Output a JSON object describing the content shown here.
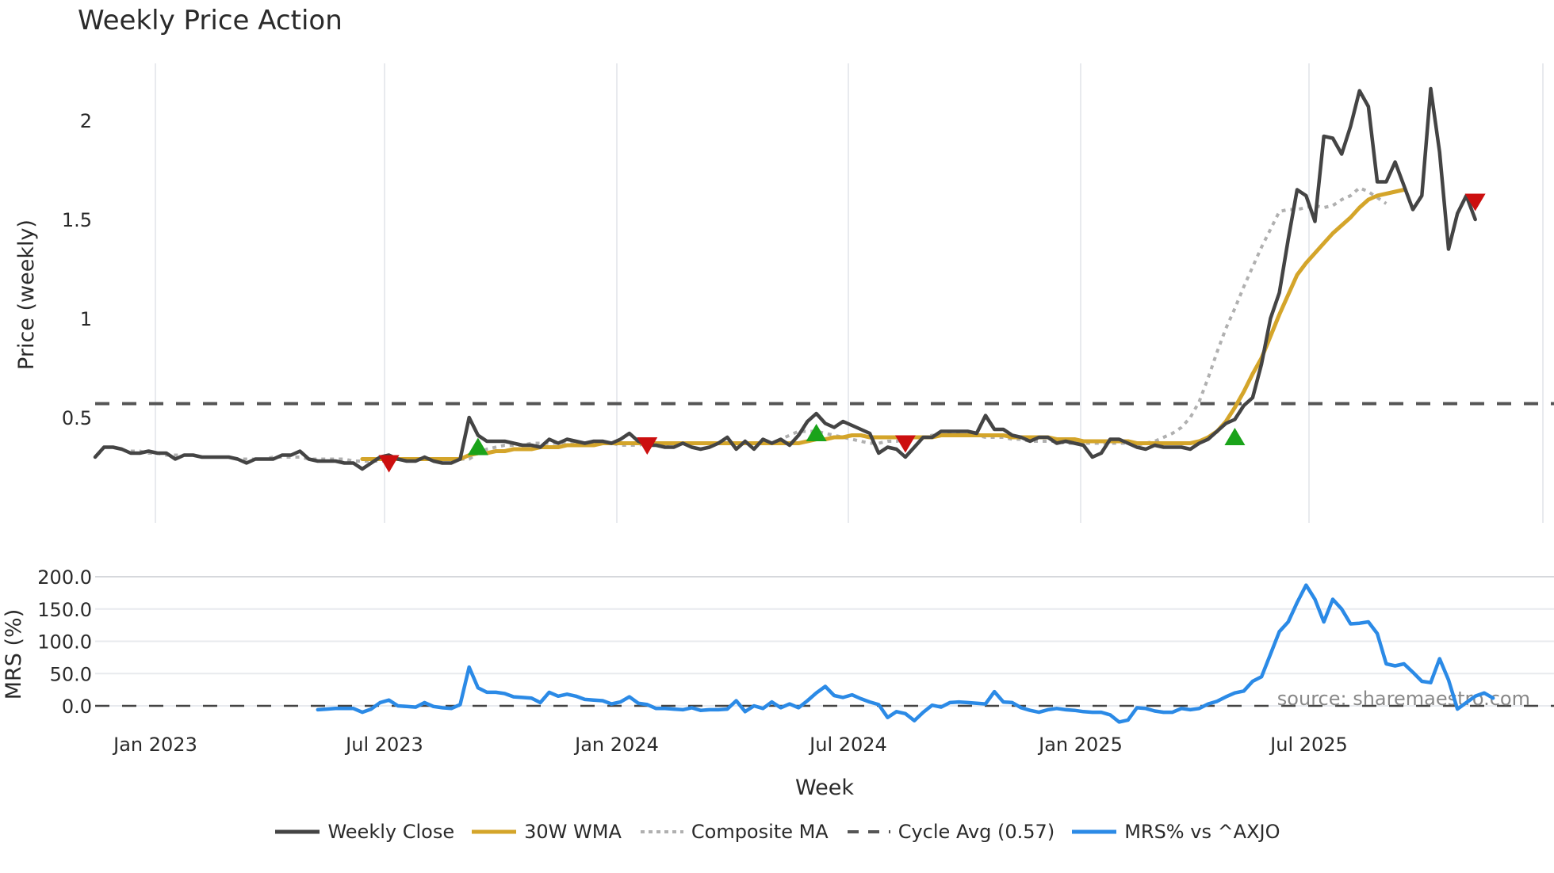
{
  "header": {
    "title": "Weekly Price Action"
  },
  "source_note": "source: sharemaestro.com",
  "colors": {
    "close": "#444444",
    "wma": "#d4a52a",
    "composite": "#b0b0b0",
    "cycle": "#555555",
    "mrs": "#2b8ae6",
    "buy": "#1aa31a",
    "sell": "#cc0f0f",
    "grid": "#e8eaee"
  },
  "legend": [
    {
      "key": "close",
      "label": "Weekly Close",
      "style": "solid"
    },
    {
      "key": "wma",
      "label": "30W WMA",
      "style": "solid"
    },
    {
      "key": "composite",
      "label": "Composite MA",
      "style": "dotted"
    },
    {
      "key": "cycle",
      "label": "Cycle Avg (0.57)",
      "style": "dashed"
    },
    {
      "key": "mrs",
      "label": "MRS% vs ^AXJO",
      "style": "solid"
    }
  ],
  "chart_data": [
    {
      "type": "line",
      "title": "Weekly Price Action",
      "xlabel": "Week",
      "ylabel": "Price (weekly)",
      "yticks": [
        0.5,
        1,
        1.5,
        2
      ],
      "ytick_labels": [
        "0.5",
        "1",
        "1.5",
        "2"
      ],
      "ylim": [
        0.19,
        2.27
      ],
      "xticks": [
        "Jan 2023",
        "Jul 2023",
        "Jan 2024",
        "Jul 2024",
        "Jan 2025",
        "Jul 2025"
      ],
      "grid": true,
      "legend_position": "bottom",
      "x_start_week": -7,
      "x_week_count": 156,
      "cycle_avg": 0.57,
      "series": [
        {
          "name": "Weekly Close",
          "start": 0,
          "values": [
            0.3,
            0.35,
            0.35,
            0.34,
            0.32,
            0.32,
            0.33,
            0.32,
            0.32,
            0.29,
            0.31,
            0.31,
            0.3,
            0.3,
            0.3,
            0.3,
            0.29,
            0.27,
            0.29,
            0.29,
            0.29,
            0.31,
            0.31,
            0.33,
            0.29,
            0.28,
            0.28,
            0.28,
            0.27,
            0.27,
            0.24,
            0.27,
            0.3,
            0.31,
            0.29,
            0.28,
            0.28,
            0.3,
            0.28,
            0.27,
            0.27,
            0.29,
            0.5,
            0.41,
            0.38,
            0.38,
            0.38,
            0.37,
            0.36,
            0.36,
            0.35,
            0.39,
            0.37,
            0.39,
            0.38,
            0.37,
            0.38,
            0.38,
            0.37,
            0.39,
            0.42,
            0.38,
            0.36,
            0.36,
            0.35,
            0.35,
            0.37,
            0.35,
            0.34,
            0.35,
            0.37,
            0.4,
            0.34,
            0.38,
            0.34,
            0.39,
            0.37,
            0.39,
            0.36,
            0.41,
            0.48,
            0.52,
            0.47,
            0.45,
            0.48,
            0.46,
            0.44,
            0.42,
            0.32,
            0.35,
            0.34,
            0.3,
            0.35,
            0.4,
            0.4,
            0.43,
            0.43,
            0.43,
            0.43,
            0.42,
            0.51,
            0.44,
            0.44,
            0.41,
            0.4,
            0.38,
            0.4,
            0.4,
            0.37,
            0.38,
            0.37,
            0.36,
            0.3,
            0.32,
            0.39,
            0.39,
            0.37,
            0.35,
            0.34,
            0.36,
            0.35,
            0.35,
            0.35,
            0.34,
            0.37,
            0.39,
            0.43,
            0.47,
            0.49,
            0.56,
            0.6,
            0.77,
            1.0,
            1.13,
            1.4,
            1.65,
            1.62,
            1.49,
            1.92,
            1.91,
            1.83,
            1.97,
            2.15,
            2.07,
            1.69,
            1.69,
            1.79,
            1.67,
            1.55,
            1.62,
            2.16,
            1.84,
            1.35,
            1.53,
            1.62,
            1.5
          ]
        },
        {
          "name": "30W WMA",
          "start": 30,
          "values": [
            0.29,
            0.29,
            0.29,
            0.29,
            0.29,
            0.29,
            0.29,
            0.29,
            0.29,
            0.29,
            0.29,
            0.29,
            0.31,
            0.32,
            0.32,
            0.33,
            0.33,
            0.34,
            0.34,
            0.34,
            0.35,
            0.35,
            0.35,
            0.36,
            0.36,
            0.36,
            0.36,
            0.37,
            0.37,
            0.37,
            0.37,
            0.37,
            0.37,
            0.37,
            0.37,
            0.37,
            0.37,
            0.37,
            0.37,
            0.37,
            0.37,
            0.37,
            0.37,
            0.37,
            0.37,
            0.37,
            0.37,
            0.37,
            0.37,
            0.37,
            0.38,
            0.39,
            0.39,
            0.4,
            0.4,
            0.41,
            0.41,
            0.4,
            0.4,
            0.4,
            0.4,
            0.4,
            0.4,
            0.4,
            0.4,
            0.41,
            0.41,
            0.41,
            0.41,
            0.41,
            0.41,
            0.41,
            0.41,
            0.4,
            0.4,
            0.4,
            0.4,
            0.4,
            0.39,
            0.39,
            0.39,
            0.38,
            0.38,
            0.38,
            0.38,
            0.38,
            0.38,
            0.37,
            0.37,
            0.37,
            0.37,
            0.37,
            0.37,
            0.37,
            0.38,
            0.4,
            0.43,
            0.48,
            0.55,
            0.63,
            0.72,
            0.8,
            0.91,
            1.02,
            1.12,
            1.22,
            1.28,
            1.33,
            1.38,
            1.43,
            1.47,
            1.51,
            1.56,
            1.6,
            1.62,
            1.63,
            1.64,
            1.65
          ]
        },
        {
          "name": "Composite MA",
          "start": 4,
          "values": [
            0.33,
            0.33,
            0.32,
            0.32,
            0.31,
            0.31,
            0.31,
            0.31,
            0.3,
            0.3,
            0.3,
            0.3,
            0.29,
            0.29,
            0.29,
            0.29,
            0.3,
            0.3,
            0.3,
            0.3,
            0.29,
            0.29,
            0.29,
            0.29,
            0.29,
            0.28,
            0.28,
            0.28,
            0.28,
            0.28,
            0.29,
            0.29,
            0.29,
            0.29,
            0.29,
            0.29,
            0.29,
            0.29,
            0.29,
            0.32,
            0.34,
            0.35,
            0.36,
            0.36,
            0.36,
            0.37,
            0.37,
            0.37,
            0.37,
            0.37,
            0.38,
            0.37,
            0.37,
            0.37,
            0.37,
            0.36,
            0.36,
            0.36,
            0.37,
            0.36,
            0.37,
            0.36,
            0.37,
            0.37,
            0.37,
            0.37,
            0.37,
            0.37,
            0.37,
            0.37,
            0.37,
            0.37,
            0.37,
            0.39,
            0.41,
            0.43,
            0.43,
            0.43,
            0.42,
            0.41,
            0.4,
            0.39,
            0.38,
            0.37,
            0.37,
            0.38,
            0.38,
            0.39,
            0.4,
            0.4,
            0.41,
            0.41,
            0.42,
            0.42,
            0.41,
            0.41,
            0.4,
            0.4,
            0.4,
            0.39,
            0.39,
            0.38,
            0.38,
            0.38,
            0.38,
            0.37,
            0.37,
            0.37,
            0.37,
            0.37,
            0.37,
            0.37,
            0.37,
            0.36,
            0.37,
            0.38,
            0.4,
            0.42,
            0.45,
            0.5,
            0.58,
            0.7,
            0.83,
            0.95,
            1.05,
            1.16,
            1.26,
            1.36,
            1.45,
            1.54,
            1.55,
            1.55,
            1.56,
            1.57,
            1.56,
            1.57,
            1.6,
            1.62,
            1.66,
            1.64,
            1.61,
            1.58
          ]
        },
        {
          "name": "Cycle Avg (0.57)",
          "constant": 0.57
        }
      ],
      "signals": [
        {
          "type": "sell",
          "week_index": 33,
          "value": 0.27
        },
        {
          "type": "buy",
          "week_index": 43,
          "value": 0.35
        },
        {
          "type": "sell",
          "week_index": 62,
          "value": 0.36
        },
        {
          "type": "buy",
          "week_index": 81,
          "value": 0.42
        },
        {
          "type": "sell",
          "week_index": 91,
          "value": 0.37
        },
        {
          "type": "buy",
          "week_index": 128,
          "value": 0.4
        },
        {
          "type": "sell",
          "week_index": 155,
          "value": 1.59
        }
      ]
    },
    {
      "type": "line",
      "title": "",
      "xlabel": "Week",
      "ylabel": "MRS (%)",
      "yticks": [
        0,
        50,
        100,
        150,
        200
      ],
      "ytick_labels": [
        "0.0",
        "50.0",
        "100.0",
        "150.0",
        "200.0"
      ],
      "ylim": [
        -30,
        210
      ],
      "zero_line": true,
      "series": [
        {
          "name": "MRS% vs ^AXJO",
          "start": 25,
          "values": [
            -6,
            -5,
            -4,
            -4,
            -4,
            -10,
            -5,
            5,
            9,
            0,
            -1,
            -2,
            5,
            -1,
            -3,
            -4,
            2,
            60,
            28,
            21,
            21,
            19,
            14,
            13,
            12,
            5,
            21,
            15,
            18,
            15,
            10,
            9,
            8,
            3,
            6,
            14,
            4,
            2,
            -4,
            -4,
            -5,
            -6,
            -3,
            -7,
            -6,
            -6,
            -5,
            8,
            -9,
            0,
            -4,
            6,
            -3,
            3,
            -3,
            8,
            20,
            30,
            16,
            13,
            17,
            11,
            6,
            2,
            -18,
            -9,
            -12,
            -23,
            -10,
            1,
            -2,
            5,
            6,
            5,
            4,
            3,
            22,
            6,
            5,
            -3,
            -7,
            -10,
            -6,
            -4,
            -6,
            -7,
            -9,
            -10,
            -10,
            -14,
            -25,
            -22,
            -3,
            -4,
            -8,
            -10,
            -10,
            -4,
            -6,
            -4,
            3,
            7,
            14,
            20,
            23,
            38,
            45,
            80,
            115,
            130,
            160,
            187,
            165,
            130,
            165,
            150,
            127,
            128,
            130,
            112,
            65,
            62,
            65,
            52,
            38,
            36,
            73,
            40,
            -5,
            5,
            15,
            20,
            12
          ]
        }
      ]
    }
  ],
  "axes": {
    "price_ylabel": "Price (weekly)",
    "mrs_ylabel": "MRS (%)",
    "xlabel": "Week"
  }
}
